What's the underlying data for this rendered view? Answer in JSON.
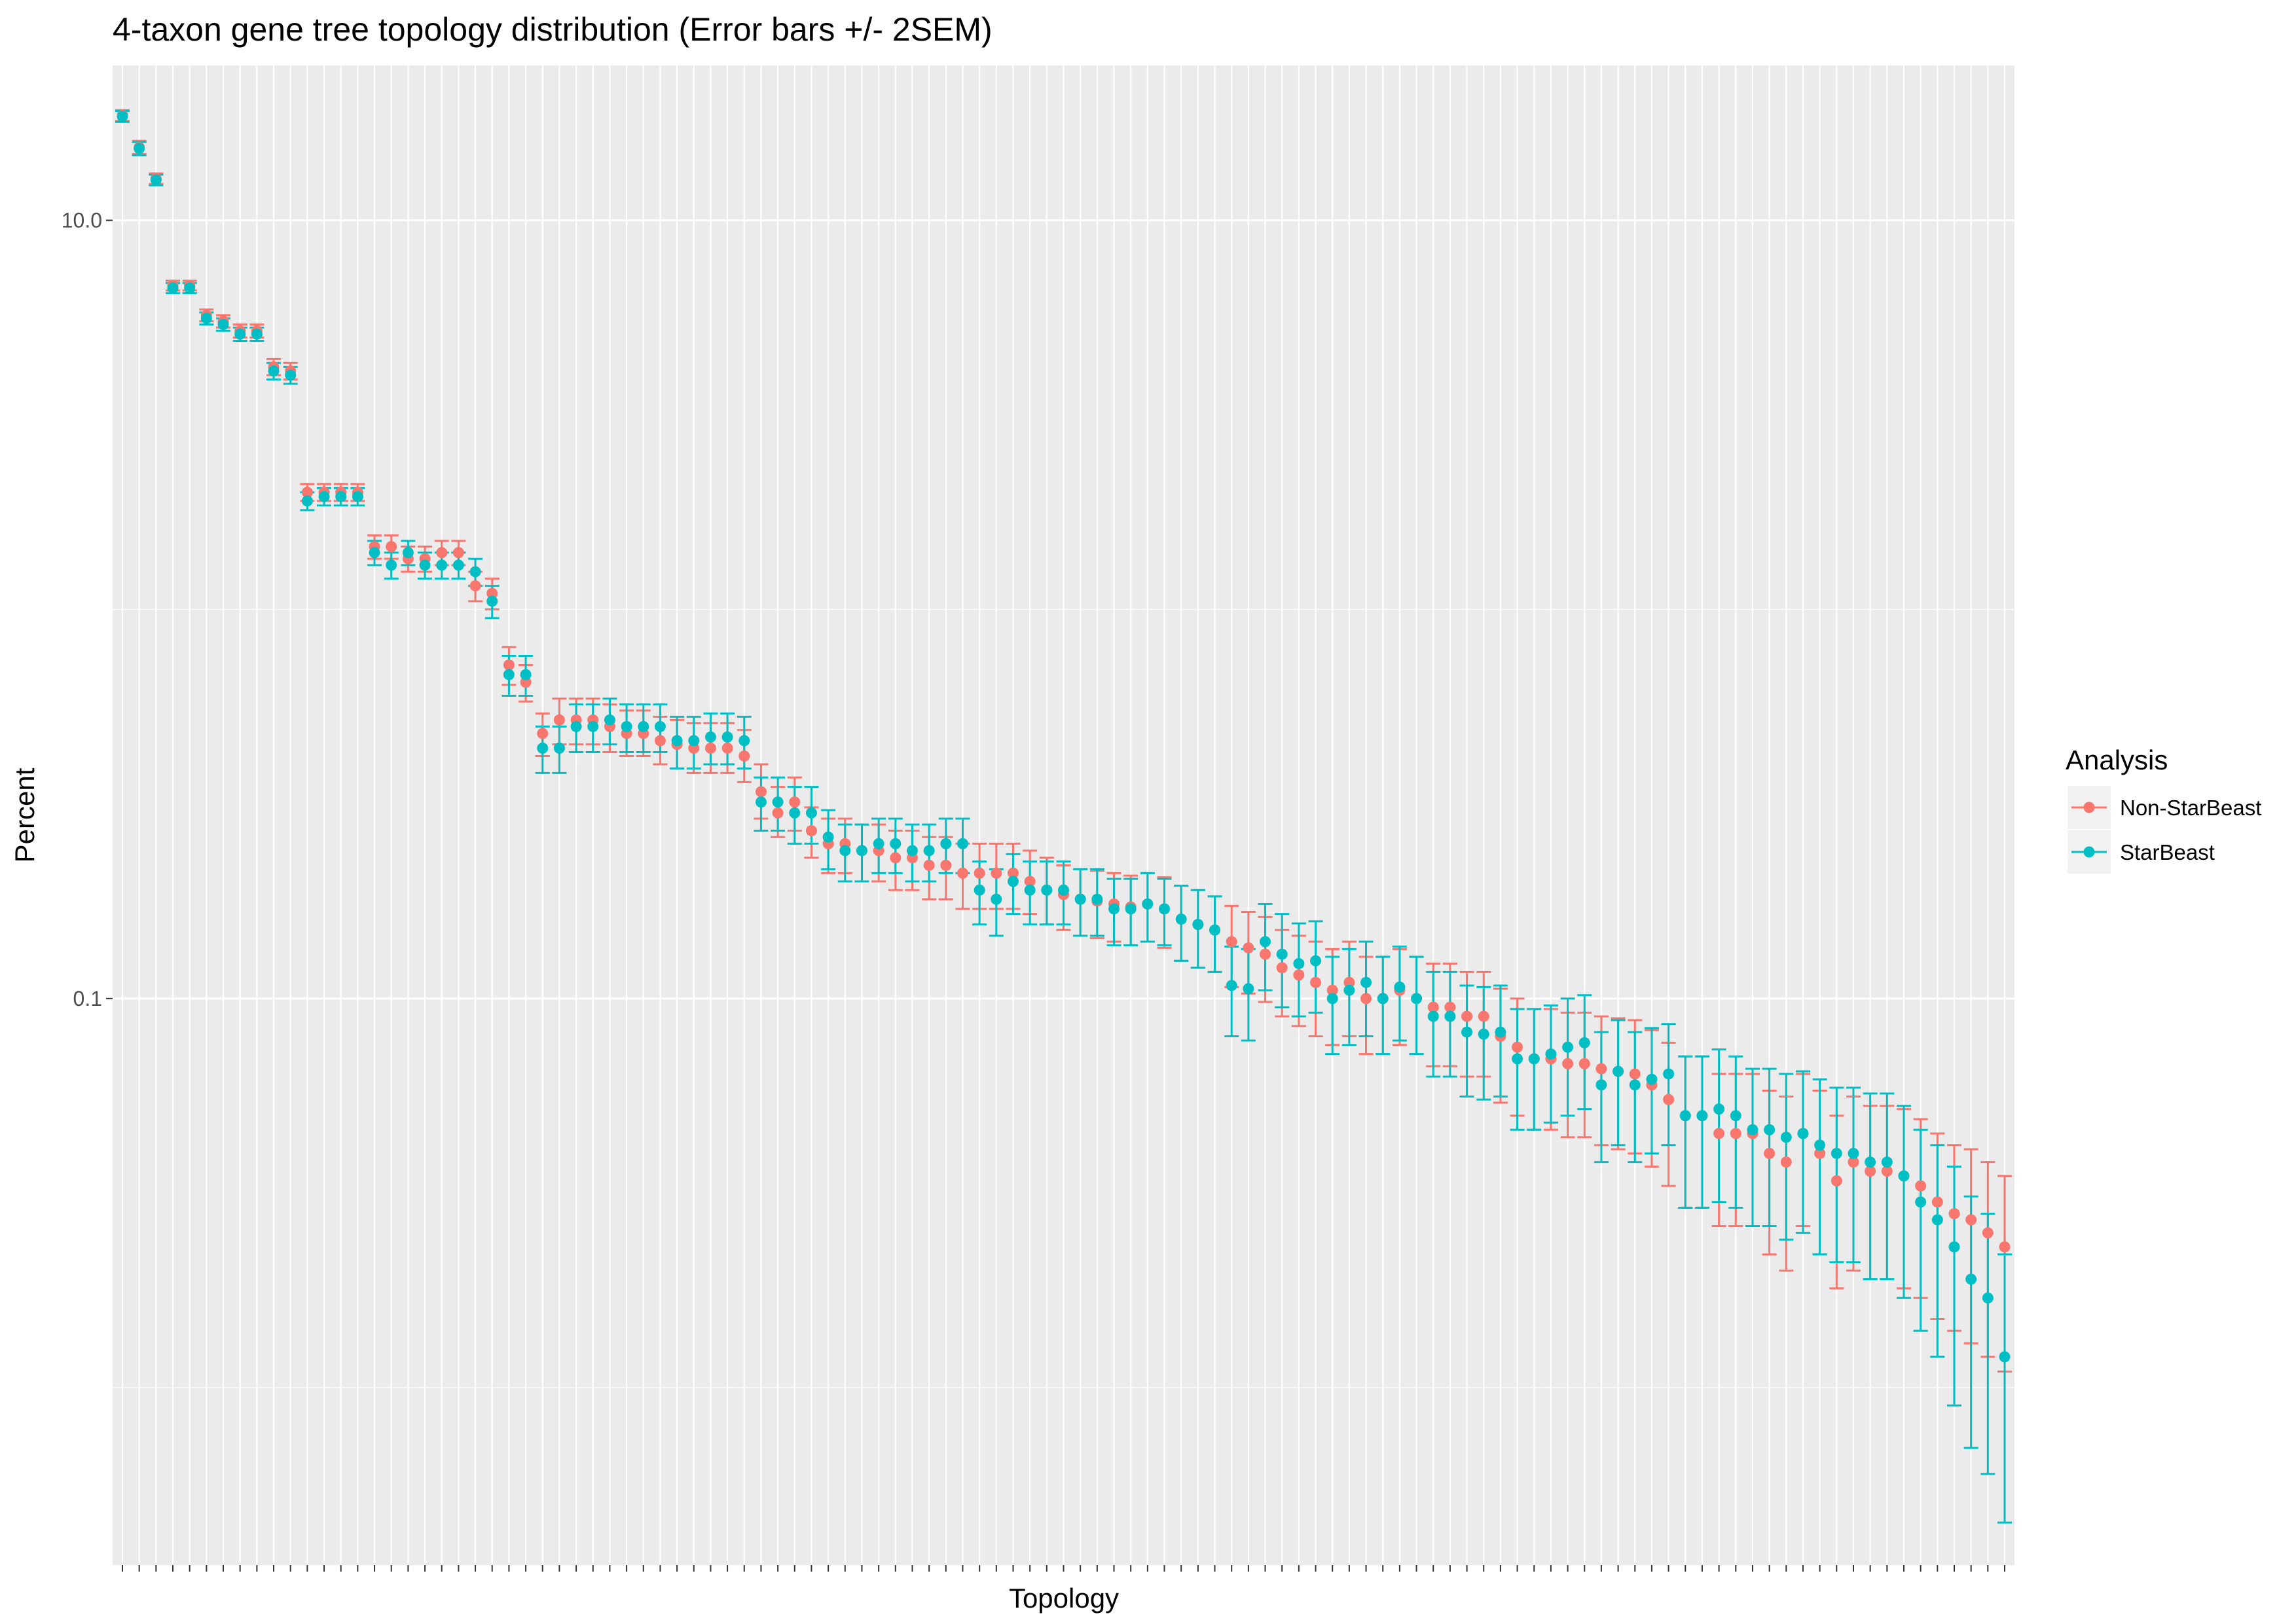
{
  "chart_data": {
    "type": "scatter",
    "title": "4-taxon gene tree topology distribution (Error bars +/- 2SEM)",
    "xlabel": "Topology",
    "ylabel": "Percent",
    "y_scale": "log10",
    "ylim": [
      0.0035,
      25
    ],
    "y_ticks": [
      0.1,
      10.0
    ],
    "y_tick_labels": [
      "0.1",
      "10.0"
    ],
    "grid": true,
    "legend": {
      "title": "Analysis",
      "placement": "right"
    },
    "series": [
      {
        "name": "Non-StarBeast",
        "color": "#F8766D",
        "values": [
          18.6,
          15.4,
          12.8,
          6.8,
          6.8,
          5.7,
          5.5,
          5.2,
          5.2,
          4.2,
          4.1,
          2.0,
          2.0,
          2.0,
          2.0,
          1.45,
          1.45,
          1.35,
          1.35,
          1.4,
          1.4,
          1.15,
          1.1,
          0.72,
          0.65,
          0.48,
          0.52,
          0.52,
          0.52,
          0.5,
          0.48,
          0.48,
          0.46,
          0.45,
          0.44,
          0.44,
          0.44,
          0.42,
          0.34,
          0.3,
          0.32,
          0.27,
          0.25,
          0.25,
          0.24,
          0.24,
          0.23,
          0.23,
          0.22,
          0.22,
          0.21,
          0.21,
          0.21,
          0.21,
          0.2,
          0.19,
          0.185,
          0.18,
          0.178,
          0.175,
          0.172,
          0.175,
          0.17,
          0.16,
          0.155,
          0.15,
          0.14,
          0.135,
          0.13,
          0.12,
          0.115,
          0.11,
          0.105,
          0.11,
          0.1,
          0.1,
          0.105,
          0.1,
          0.095,
          0.095,
          0.09,
          0.09,
          0.08,
          0.075,
          0.07,
          0.07,
          0.068,
          0.068,
          0.066,
          0.065,
          0.064,
          0.06,
          0.055,
          0.05,
          0.05,
          0.045,
          0.045,
          0.045,
          0.04,
          0.038,
          0.045,
          0.04,
          0.034,
          0.038,
          0.036,
          0.036,
          0.035,
          0.033,
          0.03,
          0.028,
          0.027,
          0.025,
          0.023
        ],
        "err_low": [
          18.0,
          14.8,
          12.4,
          6.6,
          6.6,
          5.5,
          5.3,
          5.0,
          5.0,
          4.0,
          3.9,
          1.9,
          1.9,
          1.9,
          1.9,
          1.35,
          1.35,
          1.25,
          1.25,
          1.3,
          1.3,
          1.05,
          1.0,
          0.64,
          0.58,
          0.42,
          0.45,
          0.45,
          0.45,
          0.43,
          0.42,
          0.42,
          0.4,
          0.39,
          0.38,
          0.38,
          0.38,
          0.36,
          0.29,
          0.26,
          0.27,
          0.23,
          0.21,
          0.21,
          0.2,
          0.2,
          0.19,
          0.19,
          0.18,
          0.18,
          0.17,
          0.17,
          0.17,
          0.17,
          0.165,
          0.155,
          0.15,
          0.145,
          0.143,
          0.14,
          0.137,
          0.14,
          0.135,
          0.125,
          0.12,
          0.117,
          0.107,
          0.103,
          0.098,
          0.09,
          0.085,
          0.08,
          0.076,
          0.08,
          0.072,
          0.072,
          0.076,
          0.072,
          0.067,
          0.067,
          0.063,
          0.063,
          0.054,
          0.05,
          0.046,
          0.046,
          0.044,
          0.044,
          0.042,
          0.041,
          0.04,
          0.037,
          0.033,
          0.029,
          0.029,
          0.026,
          0.026,
          0.026,
          0.022,
          0.02,
          0.026,
          0.022,
          0.018,
          0.02,
          0.019,
          0.019,
          0.018,
          0.017,
          0.015,
          0.014,
          0.013,
          0.012,
          0.011
        ],
        "err_high": [
          19.2,
          16.0,
          13.2,
          7.0,
          7.0,
          5.9,
          5.7,
          5.4,
          5.4,
          4.4,
          4.3,
          2.1,
          2.1,
          2.1,
          2.1,
          1.55,
          1.55,
          1.45,
          1.45,
          1.5,
          1.5,
          1.25,
          1.2,
          0.8,
          0.72,
          0.54,
          0.59,
          0.59,
          0.59,
          0.57,
          0.55,
          0.55,
          0.53,
          0.52,
          0.51,
          0.51,
          0.51,
          0.49,
          0.4,
          0.35,
          0.37,
          0.31,
          0.29,
          0.29,
          0.28,
          0.28,
          0.27,
          0.27,
          0.26,
          0.26,
          0.25,
          0.25,
          0.25,
          0.25,
          0.24,
          0.23,
          0.22,
          0.215,
          0.213,
          0.21,
          0.207,
          0.21,
          0.205,
          0.195,
          0.19,
          0.183,
          0.173,
          0.167,
          0.162,
          0.15,
          0.145,
          0.14,
          0.134,
          0.14,
          0.128,
          0.128,
          0.134,
          0.128,
          0.123,
          0.123,
          0.117,
          0.117,
          0.106,
          0.1,
          0.094,
          0.094,
          0.092,
          0.092,
          0.09,
          0.089,
          0.088,
          0.083,
          0.077,
          0.071,
          0.071,
          0.064,
          0.064,
          0.064,
          0.058,
          0.056,
          0.064,
          0.058,
          0.05,
          0.056,
          0.053,
          0.053,
          0.052,
          0.049,
          0.045,
          0.042,
          0.041,
          0.038,
          0.035
        ]
      },
      {
        "name": "StarBeast",
        "color": "#00BFC4",
        "values": [
          18.5,
          15.3,
          12.7,
          6.7,
          6.7,
          5.6,
          5.4,
          5.1,
          5.1,
          4.1,
          4.0,
          1.9,
          1.95,
          1.95,
          1.95,
          1.4,
          1.3,
          1.4,
          1.3,
          1.3,
          1.3,
          1.25,
          1.05,
          0.68,
          0.68,
          0.44,
          0.44,
          0.5,
          0.5,
          0.52,
          0.5,
          0.5,
          0.5,
          0.46,
          0.46,
          0.47,
          0.47,
          0.46,
          0.32,
          0.32,
          0.3,
          0.3,
          0.26,
          0.24,
          0.24,
          0.25,
          0.25,
          0.24,
          0.24,
          0.25,
          0.25,
          0.19,
          0.18,
          0.2,
          0.19,
          0.19,
          0.19,
          0.18,
          0.18,
          0.17,
          0.17,
          0.175,
          0.17,
          0.16,
          0.155,
          0.15,
          0.108,
          0.106,
          0.14,
          0.13,
          0.123,
          0.125,
          0.1,
          0.105,
          0.11,
          0.1,
          0.107,
          0.1,
          0.09,
          0.09,
          0.082,
          0.081,
          0.082,
          0.07,
          0.07,
          0.072,
          0.075,
          0.077,
          0.06,
          0.065,
          0.06,
          0.062,
          0.064,
          0.05,
          0.05,
          0.052,
          0.05,
          0.046,
          0.046,
          0.044,
          0.045,
          0.042,
          0.04,
          0.04,
          0.038,
          0.038,
          0.035,
          0.03,
          0.027,
          0.023,
          0.019,
          0.017,
          0.012
        ],
        "err_low": [
          17.9,
          14.7,
          12.3,
          6.5,
          6.5,
          5.4,
          5.2,
          4.9,
          4.9,
          3.9,
          3.8,
          1.8,
          1.85,
          1.85,
          1.85,
          1.3,
          1.2,
          1.3,
          1.2,
          1.2,
          1.2,
          1.15,
          0.95,
          0.6,
          0.6,
          0.38,
          0.38,
          0.43,
          0.43,
          0.45,
          0.43,
          0.43,
          0.43,
          0.39,
          0.39,
          0.4,
          0.4,
          0.39,
          0.27,
          0.27,
          0.25,
          0.25,
          0.215,
          0.2,
          0.2,
          0.21,
          0.21,
          0.2,
          0.2,
          0.21,
          0.21,
          0.155,
          0.145,
          0.165,
          0.155,
          0.155,
          0.155,
          0.145,
          0.145,
          0.137,
          0.137,
          0.14,
          0.137,
          0.125,
          0.12,
          0.117,
          0.08,
          0.078,
          0.105,
          0.095,
          0.09,
          0.092,
          0.072,
          0.076,
          0.08,
          0.072,
          0.078,
          0.072,
          0.063,
          0.063,
          0.056,
          0.055,
          0.056,
          0.046,
          0.046,
          0.048,
          0.05,
          0.052,
          0.038,
          0.042,
          0.038,
          0.04,
          0.042,
          0.029,
          0.029,
          0.03,
          0.029,
          0.026,
          0.026,
          0.024,
          0.025,
          0.022,
          0.021,
          0.021,
          0.019,
          0.019,
          0.017,
          0.014,
          0.012,
          0.009,
          0.007,
          0.006,
          0.0045
        ],
        "err_high": [
          19.1,
          15.9,
          13.1,
          6.9,
          6.9,
          5.8,
          5.6,
          5.3,
          5.3,
          4.3,
          4.2,
          2.0,
          2.05,
          2.05,
          2.05,
          1.5,
          1.4,
          1.5,
          1.4,
          1.4,
          1.4,
          1.35,
          1.15,
          0.76,
          0.76,
          0.5,
          0.5,
          0.57,
          0.57,
          0.59,
          0.57,
          0.57,
          0.57,
          0.53,
          0.53,
          0.54,
          0.54,
          0.53,
          0.37,
          0.37,
          0.35,
          0.35,
          0.305,
          0.28,
          0.28,
          0.29,
          0.29,
          0.28,
          0.28,
          0.29,
          0.29,
          0.225,
          0.215,
          0.235,
          0.225,
          0.225,
          0.225,
          0.215,
          0.215,
          0.203,
          0.203,
          0.21,
          0.203,
          0.195,
          0.19,
          0.183,
          0.136,
          0.134,
          0.175,
          0.165,
          0.156,
          0.158,
          0.128,
          0.134,
          0.14,
          0.128,
          0.136,
          0.128,
          0.117,
          0.117,
          0.108,
          0.107,
          0.108,
          0.094,
          0.094,
          0.096,
          0.1,
          0.102,
          0.082,
          0.088,
          0.082,
          0.084,
          0.086,
          0.071,
          0.071,
          0.074,
          0.071,
          0.066,
          0.066,
          0.064,
          0.065,
          0.062,
          0.059,
          0.059,
          0.057,
          0.057,
          0.053,
          0.046,
          0.042,
          0.037,
          0.031,
          0.028,
          0.022
        ]
      }
    ]
  }
}
